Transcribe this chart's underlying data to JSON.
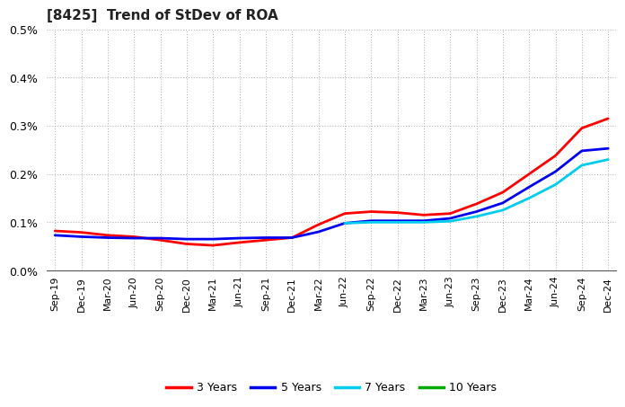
{
  "title": "[8425]  Trend of StDev of ROA",
  "background_color": "#ffffff",
  "plot_bg_color": "#ffffff",
  "grid_color": "#aaaaaa",
  "ylim": [
    0.0,
    0.005
  ],
  "ytick_values": [
    0.0,
    0.001,
    0.002,
    0.003,
    0.004,
    0.005
  ],
  "ytick_labels": [
    "0.0%",
    "0.1%",
    "0.2%",
    "0.3%",
    "0.4%",
    "0.5%"
  ],
  "x_labels": [
    "Sep-19",
    "Dec-19",
    "Mar-20",
    "Jun-20",
    "Sep-20",
    "Dec-20",
    "Mar-21",
    "Jun-21",
    "Sep-21",
    "Dec-21",
    "Mar-22",
    "Jun-22",
    "Sep-22",
    "Dec-22",
    "Mar-23",
    "Jun-23",
    "Sep-23",
    "Dec-23",
    "Mar-24",
    "Jun-24",
    "Sep-24",
    "Dec-24"
  ],
  "series": {
    "3 Years": {
      "color": "#ff0000",
      "values": [
        0.00082,
        0.00079,
        0.00073,
        0.0007,
        0.00063,
        0.00055,
        0.00052,
        0.00058,
        0.00063,
        0.00068,
        0.00095,
        0.00118,
        0.00122,
        0.0012,
        0.00115,
        0.00118,
        0.00138,
        0.00162,
        0.002,
        0.00238,
        0.00295,
        0.00315
      ]
    },
    "5 Years": {
      "color": "#0000ee",
      "values": [
        0.00073,
        0.0007,
        0.00068,
        0.00067,
        0.00067,
        0.00065,
        0.00065,
        0.00067,
        0.00068,
        0.00068,
        0.0008,
        0.00098,
        0.00103,
        0.00103,
        0.00103,
        0.00108,
        0.00122,
        0.0014,
        0.00173,
        0.00205,
        0.00248,
        0.00253
      ]
    },
    "7 Years": {
      "color": "#00ccee",
      "values": [
        null,
        null,
        null,
        null,
        null,
        null,
        null,
        null,
        null,
        null,
        null,
        0.00098,
        0.001,
        0.001,
        0.001,
        0.00102,
        0.00112,
        0.00125,
        0.0015,
        0.00178,
        0.00218,
        0.0023
      ]
    },
    "10 Years": {
      "color": "#00aa00",
      "values": [
        null,
        null,
        null,
        null,
        null,
        null,
        null,
        null,
        null,
        null,
        null,
        null,
        null,
        null,
        null,
        null,
        null,
        null,
        null,
        null,
        null,
        null
      ]
    }
  },
  "legend_labels": [
    "3 Years",
    "5 Years",
    "7 Years",
    "10 Years"
  ],
  "legend_colors": [
    "#ff0000",
    "#0000ee",
    "#00ccee",
    "#00aa00"
  ]
}
